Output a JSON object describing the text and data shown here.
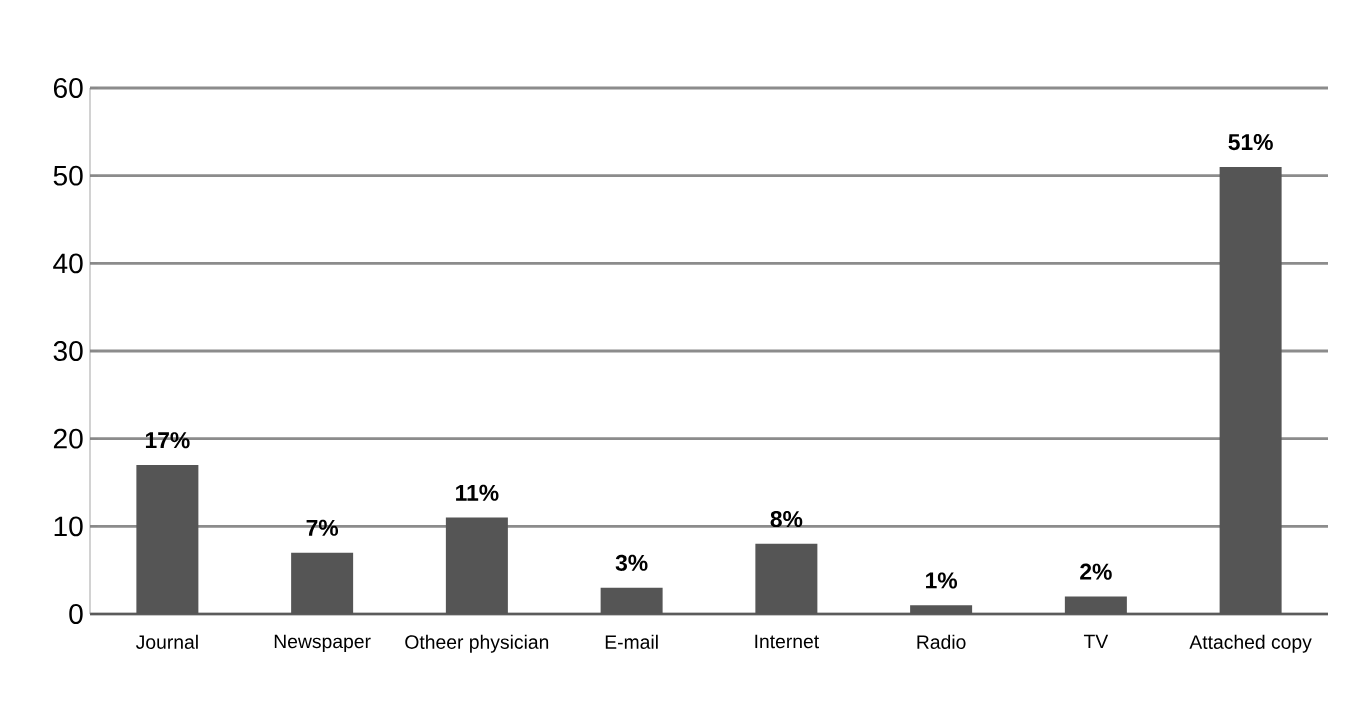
{
  "chart_data": {
    "type": "bar",
    "categories": [
      "Journal",
      "Newspaper",
      "Otheer physician",
      "E-mail",
      "Internet",
      "Radio",
      "TV",
      "Attached copy"
    ],
    "values": [
      17,
      7,
      11,
      3,
      8,
      1,
      2,
      51
    ],
    "value_labels": [
      "17%",
      "7%",
      "11%",
      "3%",
      "8%",
      "1%",
      "2%",
      "51%"
    ],
    "color": "#555555",
    "ylim": [
      0,
      60
    ],
    "yticks": [
      0,
      10,
      20,
      30,
      40,
      50,
      60
    ],
    "grid": "y"
  }
}
